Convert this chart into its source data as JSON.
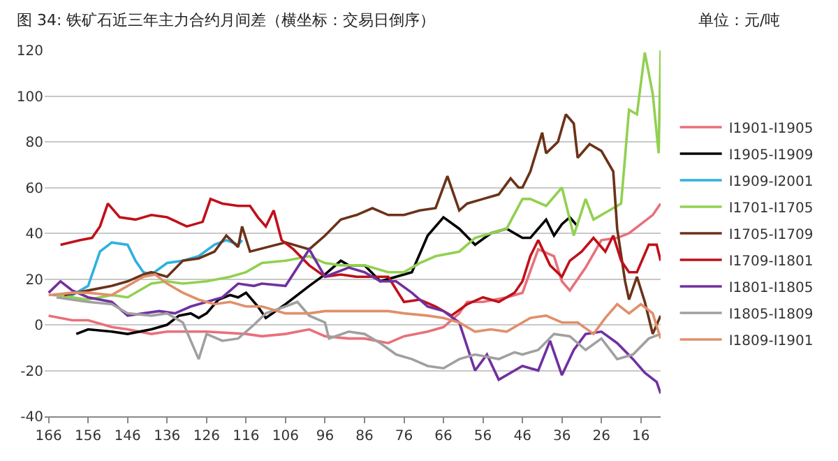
{
  "chart_data": {
    "type": "line",
    "title": "图 34: 铁矿石近三年主力合约月间差（横坐标：交易日倒序）",
    "subtitle": "单位：元/吨",
    "xlim": [
      167,
      11
    ],
    "xticks": [
      166,
      156,
      146,
      136,
      126,
      116,
      106,
      96,
      86,
      76,
      66,
      56,
      46,
      36,
      26,
      16
    ],
    "ylim": [
      -40,
      120
    ],
    "yticks": [
      -40,
      -20,
      0,
      20,
      40,
      60,
      80,
      100,
      120
    ],
    "grid": "y",
    "legend": "right",
    "marker": "none",
    "line_style": "solid",
    "series": [
      {
        "name": "I1901-I1905",
        "color": "#e8707a",
        "x": [
          166,
          160,
          156,
          150,
          146,
          140,
          136,
          126,
          116,
          112,
          106,
          100,
          96,
          90,
          86,
          80,
          76,
          70,
          66,
          62,
          60,
          56,
          50,
          46,
          42,
          38,
          36,
          34,
          30,
          26,
          22,
          19,
          16,
          13,
          11
        ],
        "values": [
          4,
          2,
          2,
          -1,
          -2,
          -4,
          -3,
          -3,
          -4,
          -5,
          -4,
          -2,
          -5,
          -6,
          -6,
          -8,
          -5,
          -3,
          -1,
          5,
          10,
          10,
          12,
          14,
          33,
          30,
          19,
          15,
          25,
          37,
          38,
          40,
          44,
          48,
          53
        ]
      },
      {
        "name": "I1905-I1909",
        "color": "#000000",
        "x": [
          159,
          156,
          150,
          146,
          140,
          136,
          133,
          130,
          128,
          126,
          123,
          120,
          118,
          116,
          113,
          111,
          106,
          100,
          96,
          92,
          90,
          86,
          82,
          78,
          74,
          70,
          66,
          62,
          58,
          54,
          50,
          46,
          44,
          40,
          38,
          36,
          34,
          32
        ],
        "values": [
          -4,
          -2,
          -3,
          -4,
          -2,
          0,
          4,
          5,
          3,
          5,
          11,
          13,
          12,
          14,
          8,
          3,
          9,
          17,
          22,
          28,
          26,
          26,
          19,
          21,
          23,
          39,
          47,
          42,
          35,
          40,
          42,
          38,
          38,
          46,
          39,
          44,
          47,
          43
        ]
      },
      {
        "name": "I1909-I2001",
        "color": "#2eb0e0",
        "x": [
          165,
          160,
          156,
          153,
          150,
          146,
          144,
          142,
          140,
          136,
          132,
          128,
          124,
          121,
          118,
          117
        ],
        "values": [
          13,
          13,
          17,
          32,
          36,
          35,
          28,
          23,
          22,
          27,
          28,
          30,
          35,
          37,
          35,
          37
        ]
      },
      {
        "name": "I1701-I1705",
        "color": "#92d050",
        "x": [
          164,
          156,
          150,
          146,
          140,
          136,
          132,
          126,
          120,
          116,
          112,
          106,
          100,
          96,
          92,
          86,
          80,
          76,
          72,
          68,
          62,
          58,
          54,
          50,
          46,
          44,
          40,
          36,
          33,
          30,
          28,
          24,
          21,
          19,
          17,
          15,
          13,
          11.5,
          11
        ],
        "values": [
          13,
          11,
          13,
          12,
          18,
          19,
          18,
          19,
          21,
          23,
          27,
          28,
          30,
          27,
          26,
          26,
          23,
          23,
          27,
          30,
          32,
          38,
          40,
          42,
          55,
          55,
          52,
          60,
          39,
          55,
          46,
          50,
          53,
          94,
          92,
          119,
          101,
          75,
          120
        ]
      },
      {
        "name": "I1705-I1709",
        "color": "#6b3218",
        "x": [
          162,
          156,
          150,
          146,
          142,
          140,
          136,
          132,
          128,
          124,
          121,
          118,
          117,
          115,
          106,
          100,
          96,
          92,
          88,
          84,
          80,
          76,
          72,
          68,
          65,
          62,
          60,
          56,
          52,
          49,
          47,
          46,
          44,
          41,
          40,
          37,
          35,
          33,
          32,
          29,
          26,
          23,
          22,
          20,
          19,
          17,
          15,
          13,
          11
        ],
        "values": [
          13,
          15,
          17,
          19,
          22,
          23,
          21,
          28,
          29,
          32,
          39,
          34,
          43,
          32,
          36,
          33,
          39,
          46,
          48,
          51,
          48,
          48,
          50,
          51,
          65,
          50,
          53,
          55,
          57,
          64,
          60,
          60,
          67,
          84,
          75,
          80,
          92,
          88,
          73,
          79,
          76,
          67,
          42,
          19,
          11,
          21,
          10,
          -4,
          4
        ]
      },
      {
        "name": "I1709-I1801",
        "color": "#c0101a",
        "x": [
          163,
          158,
          155,
          153,
          151,
          148,
          144,
          140,
          136,
          131,
          127,
          125,
          122,
          118,
          115,
          113,
          111,
          109,
          107,
          104,
          100,
          96,
          92,
          88,
          84,
          80,
          76,
          72,
          68,
          64,
          60,
          56,
          52,
          48,
          46,
          44,
          42,
          39,
          36,
          34,
          31,
          28,
          25,
          23,
          21,
          19,
          17,
          14,
          12,
          11
        ],
        "values": [
          35,
          37,
          38,
          43,
          53,
          47,
          46,
          48,
          47,
          43,
          45,
          55,
          53,
          52,
          52,
          47,
          43,
          50,
          37,
          33,
          26,
          21,
          22,
          21,
          21,
          21,
          10,
          11,
          8,
          4,
          9,
          12,
          10,
          14,
          19,
          30,
          37,
          26,
          21,
          28,
          32,
          38,
          32,
          39,
          28,
          23,
          23,
          35,
          35,
          28
        ]
      },
      {
        "name": "I1801-I1805",
        "color": "#7030a0",
        "x": [
          166,
          163,
          160,
          156,
          150,
          146,
          142,
          138,
          134,
          130,
          126,
          122,
          118,
          114,
          112,
          106,
          100,
          96,
          90,
          86,
          82,
          78,
          74,
          70,
          66,
          62,
          58,
          55,
          52,
          48,
          46,
          42,
          39,
          36,
          33,
          30,
          26,
          22,
          18,
          15,
          12,
          11
        ],
        "values": [
          14,
          19,
          15,
          12,
          10,
          4,
          5,
          6,
          5,
          8,
          10,
          12,
          18,
          17,
          18,
          17,
          33,
          21,
          25,
          23,
          19,
          19,
          14,
          8,
          6,
          1,
          -20,
          -13,
          -24,
          -20,
          -18,
          -20,
          -7,
          -22,
          -11,
          -4,
          -3,
          -8,
          -15,
          -21,
          -25,
          -30
        ]
      },
      {
        "name": "I1805-I1809",
        "color": "#a0a0a0",
        "x": [
          164,
          160,
          156,
          150,
          146,
          140,
          136,
          132,
          128,
          126,
          122,
          118,
          114,
          111,
          106,
          103,
          100,
          96,
          95,
          90,
          86,
          82,
          78,
          74,
          70,
          66,
          62,
          58,
          52,
          48,
          46,
          42,
          38,
          34,
          30,
          26,
          22,
          18,
          14,
          11
        ],
        "values": [
          12,
          11,
          10,
          9,
          5,
          4,
          5,
          1,
          -15,
          -4,
          -7,
          -6,
          0,
          5,
          8,
          10,
          4,
          1,
          -6,
          -3,
          -4,
          -8,
          -13,
          -15,
          -18,
          -19,
          -15,
          -13,
          -15,
          -12,
          -13,
          -11,
          -4,
          -5,
          -11,
          -6,
          -15,
          -13,
          -6,
          -4
        ]
      },
      {
        "name": "I1809-I1901",
        "color": "#e0906a",
        "x": [
          166,
          160,
          156,
          150,
          146,
          142,
          139,
          136,
          132,
          128,
          124,
          120,
          116,
          112,
          106,
          100,
          96,
          90,
          86,
          80,
          76,
          70,
          66,
          62,
          58,
          54,
          50,
          46,
          44,
          40,
          36,
          32,
          28,
          25,
          22,
          19,
          16,
          13,
          11
        ],
        "values": [
          13,
          14,
          14,
          13,
          17,
          21,
          22,
          18,
          14,
          11,
          9,
          10,
          8,
          8,
          5,
          5,
          6,
          6,
          6,
          6,
          5,
          4,
          3,
          1,
          -3,
          -2,
          -3,
          1,
          3,
          4,
          1,
          1,
          -4,
          3,
          9,
          5,
          9,
          5,
          -6
        ]
      }
    ]
  }
}
